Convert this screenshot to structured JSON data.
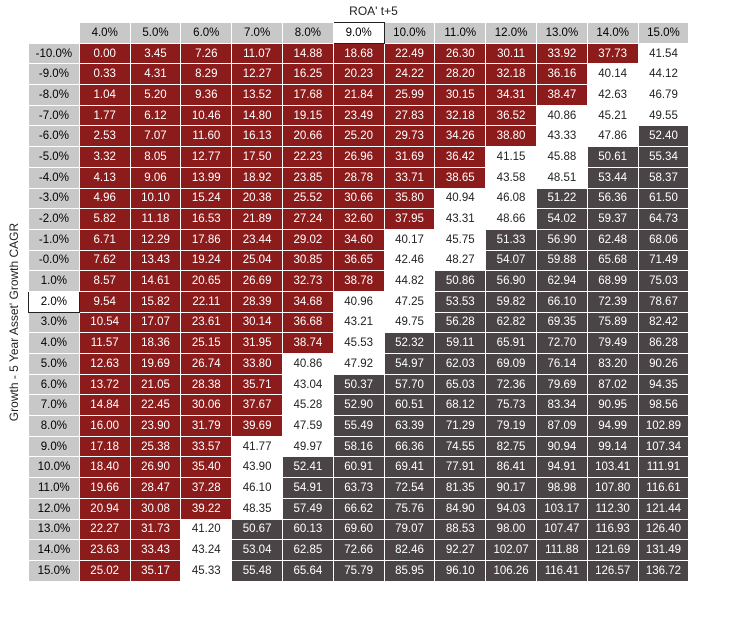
{
  "chart_data": {
    "type": "heatmap",
    "xlabel": "ROA' t+5",
    "ylabel": "Growth - 5 Year Asset' Growth CAGR",
    "highlighted_column": "9.0%",
    "highlighted_row": "2.0%",
    "colors": {
      "above": "#8c1c1c",
      "near": "#ffffff",
      "below": "#4a4446",
      "header": "#c8c8c8"
    },
    "columns": [
      "4.0%",
      "5.0%",
      "6.0%",
      "7.0%",
      "8.0%",
      "9.0%",
      "10.0%",
      "11.0%",
      "12.0%",
      "13.0%",
      "14.0%",
      "15.0%"
    ],
    "rows": [
      "-10.0%",
      "-9.0%",
      "-8.0%",
      "-7.0%",
      "-6.0%",
      "-5.0%",
      "-4.0%",
      "-3.0%",
      "-2.0%",
      "-1.0%",
      "-0.0%",
      "1.0%",
      "2.0%",
      "3.0%",
      "4.0%",
      "5.0%",
      "6.0%",
      "7.0%",
      "8.0%",
      "9.0%",
      "10.0%",
      "11.0%",
      "12.0%",
      "13.0%",
      "14.0%",
      "15.0%"
    ],
    "values": [
      [
        "0.00",
        "3.45",
        "7.26",
        "11.07",
        "14.88",
        "18.68",
        "22.49",
        "26.30",
        "30.11",
        "33.92",
        "37.73",
        "41.54"
      ],
      [
        "0.33",
        "4.31",
        "8.29",
        "12.27",
        "16.25",
        "20.23",
        "24.22",
        "28.20",
        "32.18",
        "36.16",
        "40.14",
        "44.12"
      ],
      [
        "1.04",
        "5.20",
        "9.36",
        "13.52",
        "17.68",
        "21.84",
        "25.99",
        "30.15",
        "34.31",
        "38.47",
        "42.63",
        "46.79"
      ],
      [
        "1.77",
        "6.12",
        "10.46",
        "14.80",
        "19.15",
        "23.49",
        "27.83",
        "32.18",
        "36.52",
        "40.86",
        "45.21",
        "49.55"
      ],
      [
        "2.53",
        "7.07",
        "11.60",
        "16.13",
        "20.66",
        "25.20",
        "29.73",
        "34.26",
        "38.80",
        "43.33",
        "47.86",
        "52.40"
      ],
      [
        "3.32",
        "8.05",
        "12.77",
        "17.50",
        "22.23",
        "26.96",
        "31.69",
        "36.42",
        "41.15",
        "45.88",
        "50.61",
        "55.34"
      ],
      [
        "4.13",
        "9.06",
        "13.99",
        "18.92",
        "23.85",
        "28.78",
        "33.71",
        "38.65",
        "43.58",
        "48.51",
        "53.44",
        "58.37"
      ],
      [
        "4.96",
        "10.10",
        "15.24",
        "20.38",
        "25.52",
        "30.66",
        "35.80",
        "40.94",
        "46.08",
        "51.22",
        "56.36",
        "61.50"
      ],
      [
        "5.82",
        "11.18",
        "16.53",
        "21.89",
        "27.24",
        "32.60",
        "37.95",
        "43.31",
        "48.66",
        "54.02",
        "59.37",
        "64.73"
      ],
      [
        "6.71",
        "12.29",
        "17.86",
        "23.44",
        "29.02",
        "34.60",
        "40.17",
        "45.75",
        "51.33",
        "56.90",
        "62.48",
        "68.06"
      ],
      [
        "7.62",
        "13.43",
        "19.24",
        "25.04",
        "30.85",
        "36.65",
        "42.46",
        "48.27",
        "54.07",
        "59.88",
        "65.68",
        "71.49"
      ],
      [
        "8.57",
        "14.61",
        "20.65",
        "26.69",
        "32.73",
        "38.78",
        "44.82",
        "50.86",
        "56.90",
        "62.94",
        "68.99",
        "75.03"
      ],
      [
        "9.54",
        "15.82",
        "22.11",
        "28.39",
        "34.68",
        "40.96",
        "47.25",
        "53.53",
        "59.82",
        "66.10",
        "72.39",
        "78.67"
      ],
      [
        "10.54",
        "17.07",
        "23.61",
        "30.14",
        "36.68",
        "43.21",
        "49.75",
        "56.28",
        "62.82",
        "69.35",
        "75.89",
        "82.42"
      ],
      [
        "11.57",
        "18.36",
        "25.15",
        "31.95",
        "38.74",
        "45.53",
        "52.32",
        "59.11",
        "65.91",
        "72.70",
        "79.49",
        "86.28"
      ],
      [
        "12.63",
        "19.69",
        "26.74",
        "33.80",
        "40.86",
        "47.92",
        "54.97",
        "62.03",
        "69.09",
        "76.14",
        "83.20",
        "90.26"
      ],
      [
        "13.72",
        "21.05",
        "28.38",
        "35.71",
        "43.04",
        "50.37",
        "57.70",
        "65.03",
        "72.36",
        "79.69",
        "87.02",
        "94.35"
      ],
      [
        "14.84",
        "22.45",
        "30.06",
        "37.67",
        "45.28",
        "52.90",
        "60.51",
        "68.12",
        "75.73",
        "83.34",
        "90.95",
        "98.56"
      ],
      [
        "16.00",
        "23.90",
        "31.79",
        "39.69",
        "47.59",
        "55.49",
        "63.39",
        "71.29",
        "79.19",
        "87.09",
        "94.99",
        "102.89"
      ],
      [
        "17.18",
        "25.38",
        "33.57",
        "41.77",
        "49.97",
        "58.16",
        "66.36",
        "74.55",
        "82.75",
        "90.94",
        "99.14",
        "107.34"
      ],
      [
        "18.40",
        "26.90",
        "35.40",
        "43.90",
        "52.41",
        "60.91",
        "69.41",
        "77.91",
        "86.41",
        "94.91",
        "103.41",
        "111.91"
      ],
      [
        "19.66",
        "28.47",
        "37.28",
        "46.10",
        "54.91",
        "63.73",
        "72.54",
        "81.35",
        "90.17",
        "98.98",
        "107.80",
        "116.61"
      ],
      [
        "20.94",
        "30.08",
        "39.22",
        "48.35",
        "57.49",
        "66.62",
        "75.76",
        "84.90",
        "94.03",
        "103.17",
        "112.30",
        "121.44"
      ],
      [
        "22.27",
        "31.73",
        "41.20",
        "50.67",
        "60.13",
        "69.60",
        "79.07",
        "88.53",
        "98.00",
        "107.47",
        "116.93",
        "126.40"
      ],
      [
        "23.63",
        "33.43",
        "43.24",
        "53.04",
        "62.85",
        "72.66",
        "82.46",
        "92.27",
        "102.07",
        "111.88",
        "121.69",
        "131.49"
      ],
      [
        "25.02",
        "35.17",
        "45.33",
        "55.48",
        "65.64",
        "75.79",
        "85.95",
        "96.10",
        "106.26",
        "116.41",
        "126.57",
        "136.72"
      ]
    ]
  }
}
